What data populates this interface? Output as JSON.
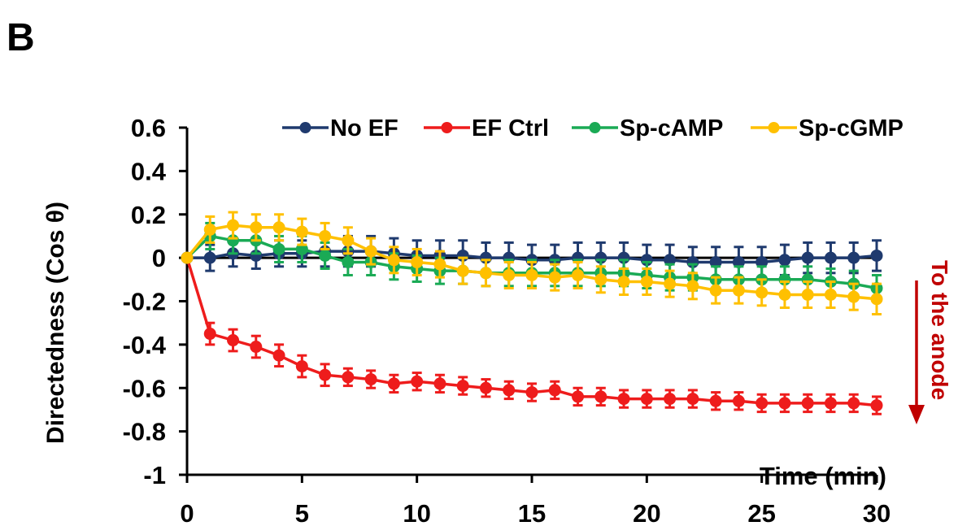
{
  "panel_label": "B",
  "chart_data": {
    "type": "line",
    "title": "",
    "xlabel": "Time (min)",
    "ylabel": "Directedness (Cos θ)",
    "xlim": [
      0,
      30
    ],
    "ylim": [
      -1,
      0.6
    ],
    "x_ticks": [
      "0",
      "5",
      "10",
      "15",
      "20",
      "25",
      "30"
    ],
    "y_ticks": [
      "0.6",
      "0.4",
      "0.2",
      "0",
      "-0.2",
      "-0.4",
      "-0.6",
      "-0.8",
      "-1"
    ],
    "legend_position": "top",
    "grid": false,
    "annotation": {
      "text": "To the anode",
      "color": "#c00000"
    },
    "x": [
      0,
      1,
      2,
      3,
      4,
      5,
      6,
      7,
      8,
      9,
      10,
      11,
      12,
      13,
      14,
      15,
      16,
      17,
      18,
      19,
      20,
      21,
      22,
      23,
      24,
      25,
      26,
      27,
      28,
      29,
      30
    ],
    "series": [
      {
        "name": "No EF",
        "color": "#1f3a6e",
        "values": [
          0,
          0,
          0.02,
          0.01,
          0.02,
          0.02,
          0.03,
          0.03,
          0.03,
          0.02,
          0.01,
          0.01,
          0.01,
          0,
          0,
          -0.01,
          -0.01,
          0,
          0,
          0,
          -0.01,
          -0.01,
          -0.02,
          -0.02,
          -0.02,
          -0.02,
          -0.01,
          0,
          0,
          0,
          0.01
        ],
        "errors": [
          0,
          0.06,
          0.06,
          0.06,
          0.06,
          0.06,
          0.07,
          0.07,
          0.07,
          0.07,
          0.07,
          0.07,
          0.07,
          0.07,
          0.07,
          0.07,
          0.07,
          0.07,
          0.07,
          0.07,
          0.07,
          0.07,
          0.07,
          0.07,
          0.07,
          0.07,
          0.07,
          0.07,
          0.07,
          0.07,
          0.07
        ]
      },
      {
        "name": "EF Ctrl",
        "color": "#ee1c1c",
        "values": [
          0,
          -0.35,
          -0.38,
          -0.41,
          -0.45,
          -0.5,
          -0.54,
          -0.55,
          -0.56,
          -0.58,
          -0.57,
          -0.58,
          -0.59,
          -0.6,
          -0.61,
          -0.62,
          -0.61,
          -0.64,
          -0.64,
          -0.65,
          -0.65,
          -0.65,
          -0.65,
          -0.66,
          -0.66,
          -0.67,
          -0.67,
          -0.67,
          -0.67,
          -0.67,
          -0.68
        ],
        "errors": [
          0,
          0.05,
          0.05,
          0.05,
          0.05,
          0.05,
          0.05,
          0.04,
          0.04,
          0.04,
          0.04,
          0.04,
          0.04,
          0.04,
          0.04,
          0.04,
          0.04,
          0.04,
          0.04,
          0.04,
          0.04,
          0.04,
          0.04,
          0.04,
          0.04,
          0.04,
          0.04,
          0.04,
          0.04,
          0.04,
          0.04
        ]
      },
      {
        "name": "Sp-cAMP",
        "color": "#1aaa55",
        "values": [
          0,
          0.1,
          0.08,
          0.08,
          0.04,
          0.04,
          0.01,
          -0.02,
          -0.02,
          -0.04,
          -0.05,
          -0.06,
          -0.06,
          -0.07,
          -0.07,
          -0.07,
          -0.07,
          -0.07,
          -0.07,
          -0.07,
          -0.08,
          -0.09,
          -0.09,
          -0.1,
          -0.1,
          -0.1,
          -0.1,
          -0.1,
          -0.11,
          -0.12,
          -0.14
        ],
        "errors": [
          0,
          0.06,
          0.06,
          0.06,
          0.06,
          0.06,
          0.06,
          0.06,
          0.06,
          0.06,
          0.06,
          0.06,
          0.06,
          0.06,
          0.06,
          0.06,
          0.06,
          0.06,
          0.06,
          0.06,
          0.06,
          0.06,
          0.06,
          0.06,
          0.06,
          0.06,
          0.06,
          0.06,
          0.06,
          0.06,
          0.06
        ]
      },
      {
        "name": "Sp-cGMP",
        "color": "#ffc000",
        "values": [
          0,
          0.13,
          0.15,
          0.14,
          0.14,
          0.12,
          0.1,
          0.08,
          0.03,
          -0.01,
          -0.02,
          -0.03,
          -0.06,
          -0.07,
          -0.08,
          -0.08,
          -0.09,
          -0.08,
          -0.1,
          -0.11,
          -0.11,
          -0.12,
          -0.13,
          -0.15,
          -0.15,
          -0.16,
          -0.17,
          -0.17,
          -0.17,
          -0.18,
          -0.19
        ],
        "errors": [
          0,
          0.06,
          0.06,
          0.06,
          0.06,
          0.06,
          0.06,
          0.06,
          0.06,
          0.06,
          0.06,
          0.06,
          0.06,
          0.06,
          0.06,
          0.06,
          0.06,
          0.06,
          0.06,
          0.06,
          0.06,
          0.06,
          0.06,
          0.06,
          0.06,
          0.06,
          0.06,
          0.06,
          0.06,
          0.06,
          0.07
        ]
      }
    ]
  }
}
